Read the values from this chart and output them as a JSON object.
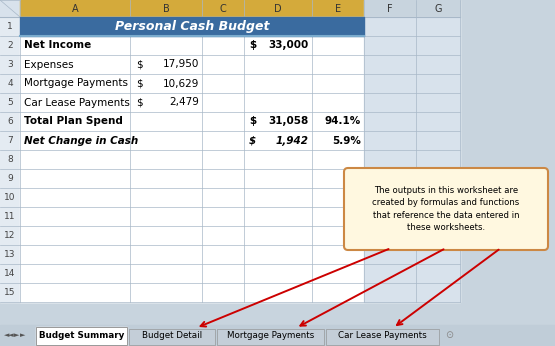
{
  "title": "Personal Cash Budget",
  "title_bg": "#3A6B9F",
  "title_color": "#FFFFFF",
  "col_header_bg_active": "#D4AA3B",
  "col_header_bg_inactive": "#C8D4DE",
  "col_headers": [
    "A",
    "B",
    "C",
    "D",
    "E",
    "F",
    "G"
  ],
  "rows_data": [
    {
      "label": "Net Income",
      "b": "",
      "c": "$",
      "d": "33,000",
      "e": "",
      "bold": true,
      "italic": false
    },
    {
      "label": "Expenses",
      "b": "$",
      "c": "17,950",
      "d": "",
      "e": "",
      "bold": false,
      "italic": false
    },
    {
      "label": "Mortgage Payments",
      "b": "$",
      "c": "10,629",
      "d": "",
      "e": "",
      "bold": false,
      "italic": false
    },
    {
      "label": "Car Lease Payments",
      "b": "$",
      "c": "2,479",
      "d": "",
      "e": "",
      "bold": false,
      "italic": false
    },
    {
      "label": "Total Plan Spend",
      "b": "",
      "c": "$",
      "d": "31,058",
      "e": "94.1%",
      "bold": true,
      "italic": false
    },
    {
      "label": "Net Change in Cash",
      "b": "",
      "c": "$",
      "d": "1,942",
      "e": "5.9%",
      "bold": true,
      "italic": true
    }
  ],
  "sheet_tabs": [
    "Budget Summary",
    "Budget Detail",
    "Mortgage Payments",
    "Car Lease Payments"
  ],
  "active_tab": "Budget Summary",
  "callout_text": "The outputs in this worksheet are\ncreated by formulas and functions\nthat reference the data entered in\nthese worksheets.",
  "arrow_color": "#CC0000",
  "callout_bg": "#FFF8E0",
  "callout_border": "#CC8844",
  "grid_color": "#A8B8C8",
  "cell_bg": "#FFFFFF",
  "row_num_bg": "#E4EBF2",
  "row_num_border": "#A8B8C8",
  "inactive_cell_bg": "#D8E2EC",
  "tab_bar_bg": "#C0CDD8",
  "tab_active_bg": "#FFFFFF",
  "tab_inactive_bg": "#C4CED8",
  "outer_bg": "#C8D4DE"
}
